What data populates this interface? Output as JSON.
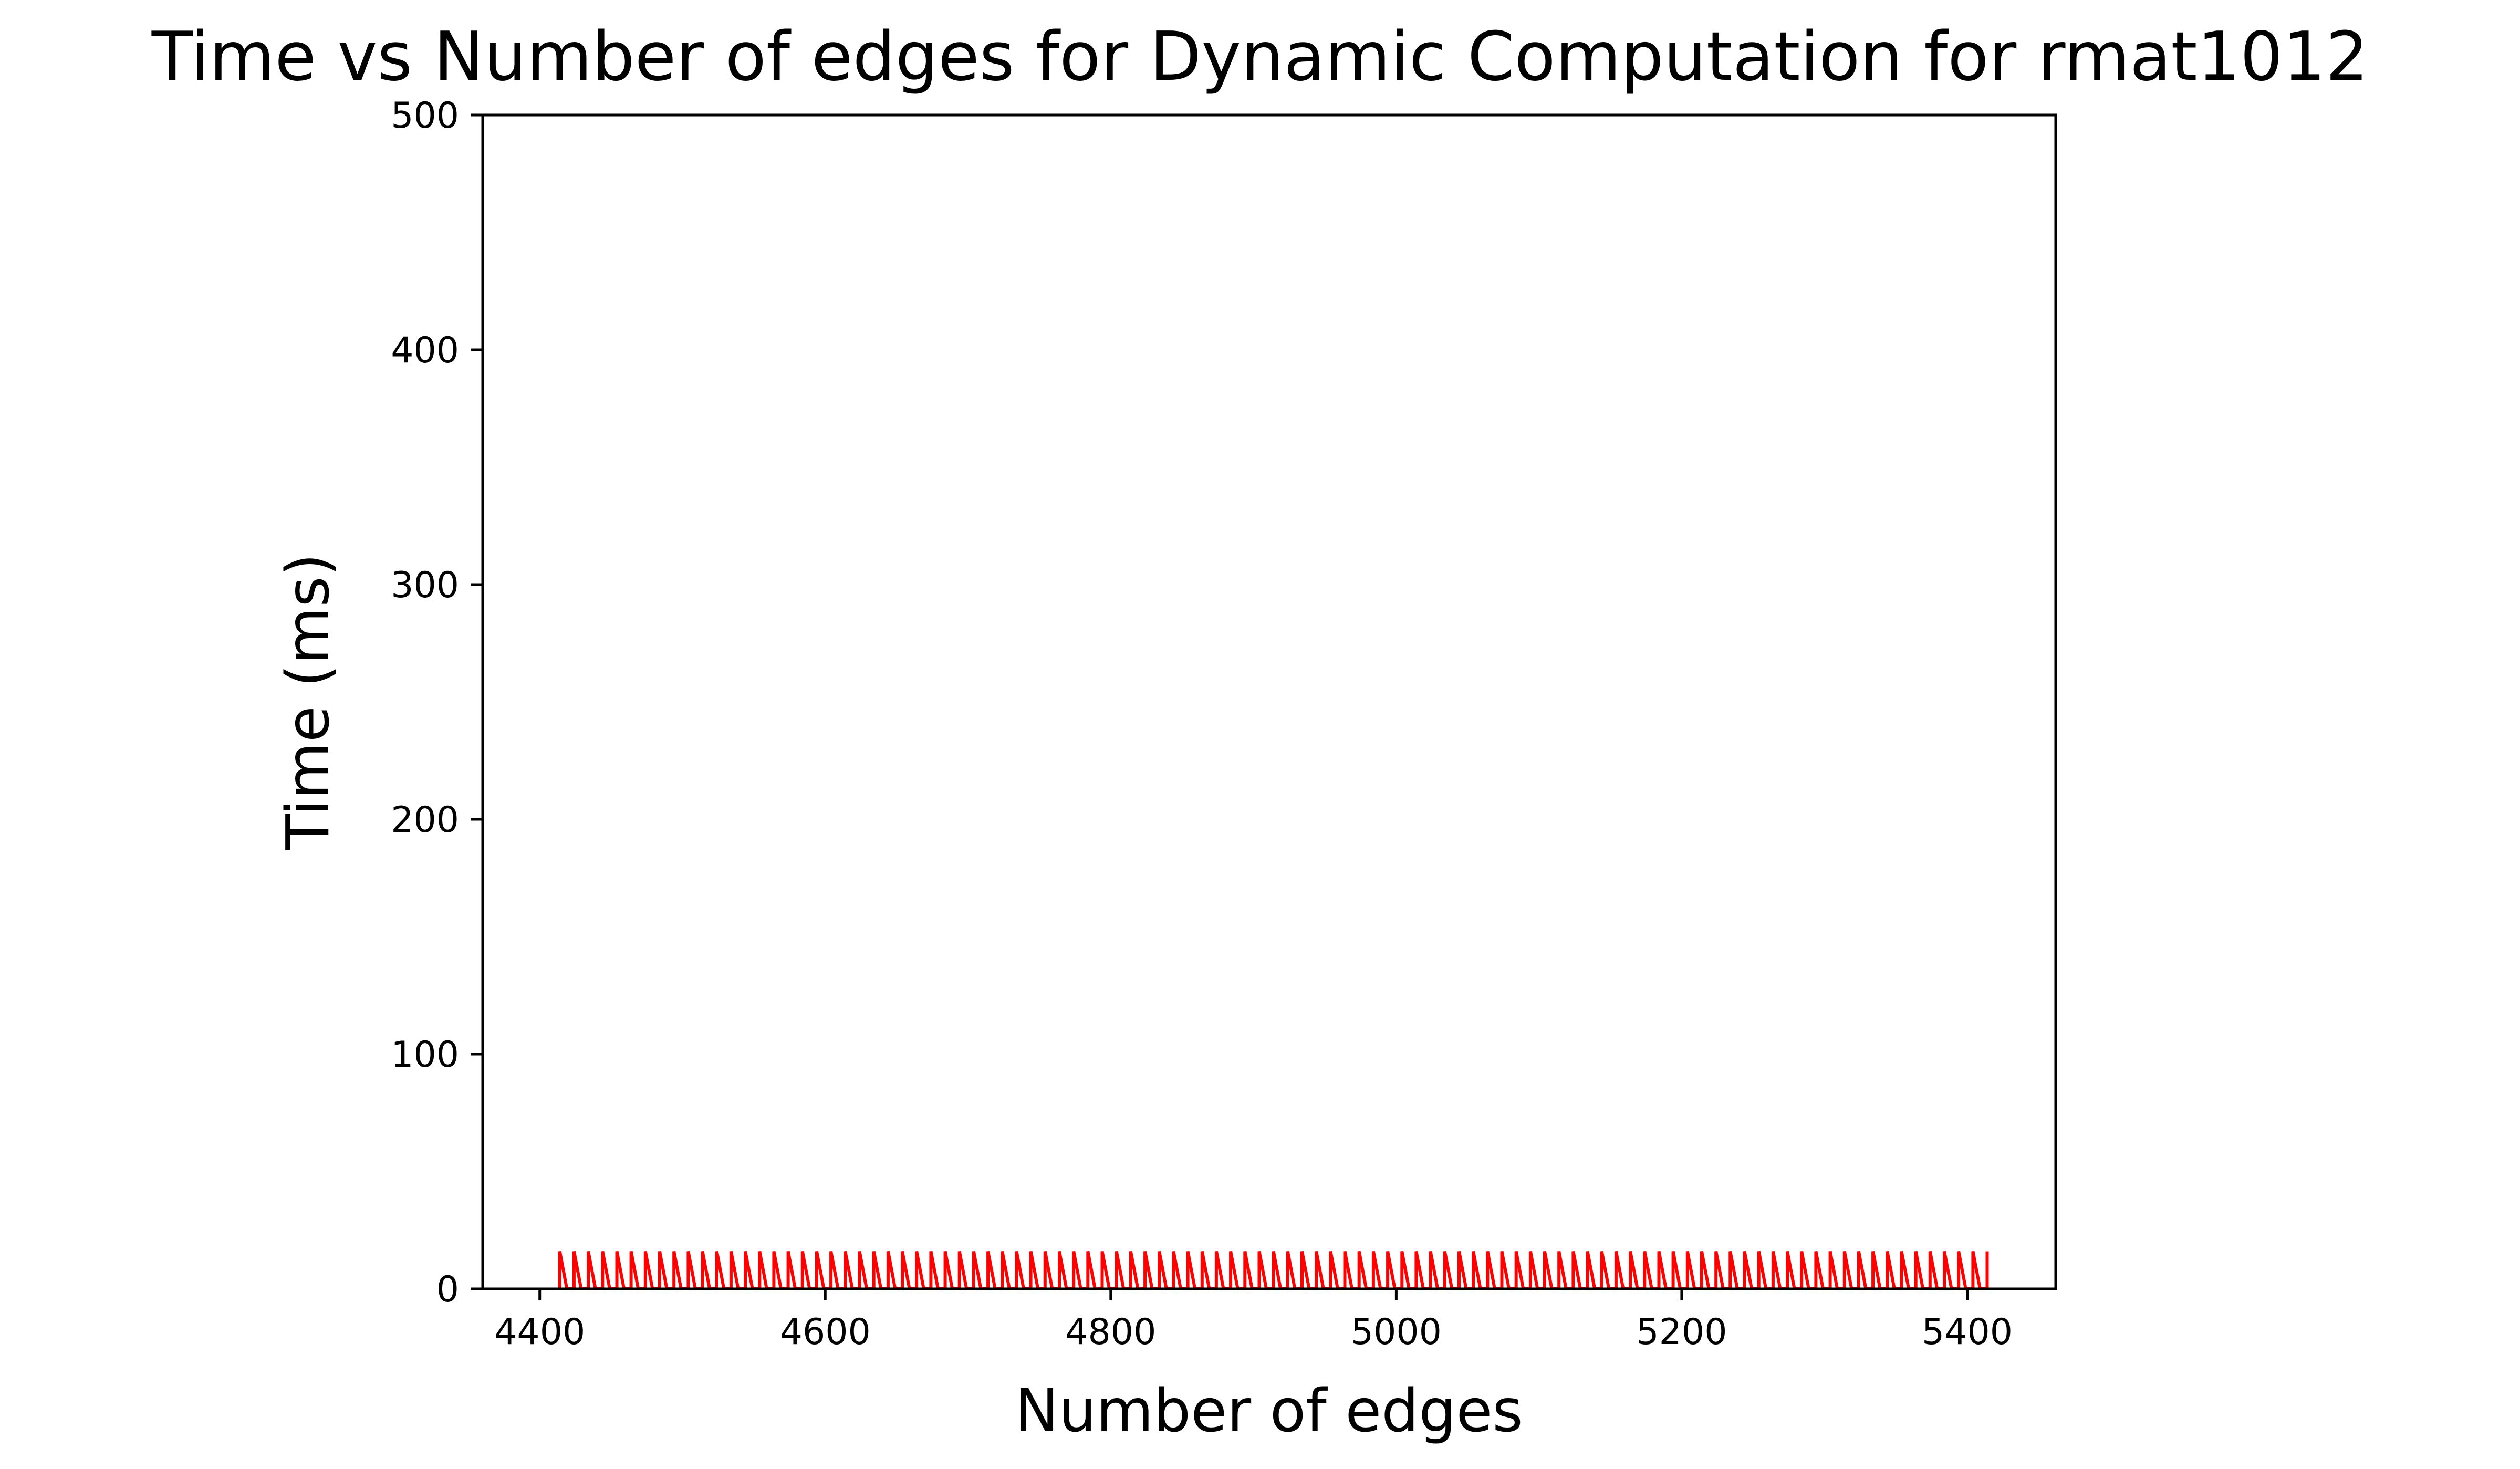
{
  "chart_data": {
    "type": "line",
    "title": "Time vs Number of edges for Dynamic Computation for rmat1012",
    "xlabel": "Number of edges",
    "ylabel": "Time (ms)",
    "xlim": [
      4360,
      5462
    ],
    "ylim": [
      0,
      500
    ],
    "xticks": [
      "4400",
      "4600",
      "4800",
      "5000",
      "5200",
      "5400"
    ],
    "yticks": [
      "0",
      "100",
      "200",
      "300",
      "400",
      "500"
    ],
    "grid": false,
    "legend": null,
    "series": [
      {
        "color": "#ff0000",
        "x_start": 4414,
        "x_end": 5414,
        "step": 10,
        "y_low": 0,
        "y_high": 16
      }
    ]
  }
}
